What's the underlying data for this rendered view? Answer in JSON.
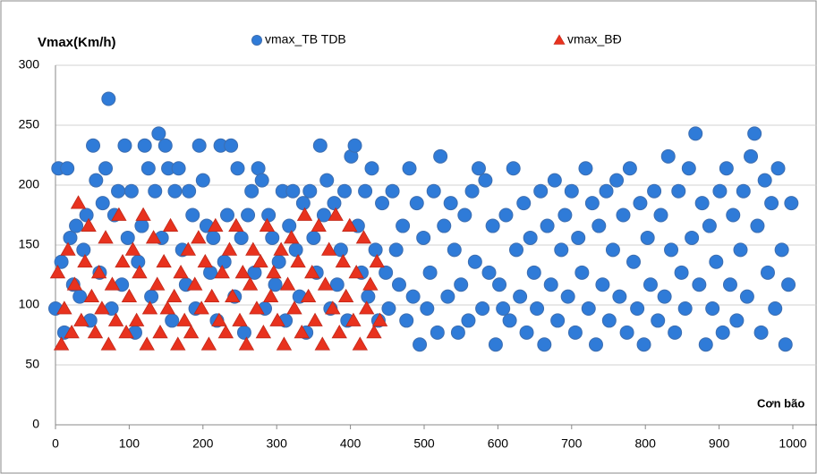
{
  "chart_data": {
    "type": "scatter",
    "y_label": "Vmax(Km/h)",
    "x_label": "Cơn bão",
    "xlim": [
      0,
      1000
    ],
    "xticks": [
      0,
      100,
      200,
      300,
      400,
      500,
      600,
      700,
      800,
      900,
      1000
    ],
    "ylim": [
      0,
      300
    ],
    "yticks": [
      0,
      50,
      100,
      150,
      200,
      250,
      300
    ],
    "grid": true,
    "series": [
      {
        "name": "vmax_TB TDB",
        "color": "#2f7bd8",
        "marker": "circle",
        "x": [
          0,
          4,
          8,
          12,
          16,
          20,
          24,
          28,
          33,
          38,
          42,
          47,
          51,
          55,
          60,
          64,
          68,
          72,
          76,
          80,
          85,
          90,
          94,
          98,
          103,
          108,
          112,
          117,
          121,
          126,
          130,
          135,
          140,
          144,
          149,
          153,
          158,
          162,
          167,
          172,
          177,
          181,
          186,
          190,
          195,
          200,
          205,
          210,
          214,
          219,
          224,
          229,
          233,
          238,
          243,
          247,
          252,
          256,
          261,
          266,
          270,
          275,
          280,
          284,
          289,
          294,
          298,
          303,
          308,
          312,
          317,
          322,
          326,
          331,
          336,
          340,
          345,
          350,
          354,
          359,
          364,
          368,
          373,
          378,
          382,
          387,
          392,
          396,
          401,
          406,
          410,
          415,
          420,
          424,
          429,
          434,
          438,
          443,
          448,
          452,
          457,
          462,
          466,
          471,
          476,
          480,
          485,
          490,
          494,
          499,
          504,
          508,
          513,
          518,
          522,
          527,
          532,
          536,
          541,
          546,
          550,
          555,
          560,
          565,
          569,
          574,
          579,
          583,
          588,
          593,
          597,
          602,
          607,
          611,
          616,
          621,
          625,
          630,
          635,
          639,
          644,
          649,
          653,
          658,
          663,
          667,
          672,
          677,
          681,
          686,
          691,
          695,
          700,
          705,
          709,
          714,
          719,
          723,
          728,
          733,
          737,
          742,
          747,
          751,
          756,
          761,
          765,
          770,
          775,
          779,
          784,
          789,
          793,
          798,
          803,
          807,
          812,
          817,
          821,
          826,
          831,
          835,
          840,
          845,
          849,
          854,
          859,
          863,
          868,
          873,
          877,
          882,
          887,
          891,
          896,
          901,
          905,
          910,
          915,
          919,
          924,
          929,
          933,
          938,
          943,
          948,
          952,
          957,
          962,
          966,
          971,
          976,
          980,
          985,
          990,
          994,
          998
        ],
        "values": [
          97,
          214,
          136,
          77,
          214,
          156,
          117,
          166,
          107,
          146,
          175,
          87,
          233,
          204,
          127,
          185,
          214,
          272,
          97,
          175,
          195,
          117,
          233,
          156,
          195,
          77,
          136,
          166,
          233,
          214,
          107,
          195,
          243,
          156,
          233,
          214,
          87,
          195,
          214,
          146,
          117,
          195,
          175,
          97,
          233,
          204,
          166,
          127,
          156,
          87,
          233,
          136,
          175,
          233,
          107,
          214,
          156,
          77,
          175,
          195,
          127,
          214,
          204,
          97,
          175,
          156,
          117,
          136,
          195,
          87,
          166,
          195,
          146,
          107,
          185,
          77,
          195,
          156,
          127,
          233,
          175,
          204,
          97,
          185,
          117,
          146,
          195,
          87,
          224,
          233,
          166,
          127,
          195,
          107,
          214,
          146,
          87,
          185,
          127,
          97,
          195,
          146,
          117,
          166,
          87,
          214,
          107,
          185,
          67,
          156,
          97,
          127,
          195,
          77,
          224,
          166,
          107,
          185,
          146,
          77,
          117,
          175,
          87,
          195,
          136,
          214,
          97,
          204,
          127,
          166,
          67,
          117,
          97,
          175,
          87,
          214,
          146,
          107,
          185,
          77,
          156,
          127,
          97,
          195,
          67,
          166,
          117,
          204,
          87,
          146,
          175,
          107,
          195,
          77,
          156,
          127,
          214,
          97,
          185,
          67,
          166,
          117,
          195,
          87,
          146,
          204,
          107,
          175,
          77,
          214,
          136,
          97,
          185,
          67,
          156,
          117,
          195,
          87,
          175,
          107,
          224,
          146,
          77,
          195,
          127,
          97,
          214,
          156,
          243,
          117,
          185,
          67,
          166,
          97,
          136,
          195,
          77,
          214,
          117,
          175,
          87,
          146,
          195,
          107,
          224,
          243,
          166,
          77,
          204,
          127,
          185,
          97,
          214,
          146,
          67,
          117,
          185
        ]
      },
      {
        "name": "vmax_BĐ",
        "color": "#e8321e",
        "marker": "triangle",
        "x": [
          3,
          8,
          12,
          17,
          22,
          26,
          31,
          35,
          40,
          45,
          49,
          54,
          59,
          63,
          68,
          72,
          77,
          82,
          86,
          91,
          96,
          100,
          105,
          110,
          114,
          119,
          124,
          128,
          133,
          138,
          142,
          147,
          152,
          156,
          161,
          166,
          170,
          175,
          180,
          184,
          189,
          194,
          198,
          203,
          208,
          212,
          217,
          222,
          226,
          231,
          236,
          240,
          245,
          250,
          254,
          259,
          264,
          268,
          273,
          278,
          282,
          287,
          292,
          296,
          301,
          306,
          310,
          315,
          320,
          324,
          329,
          334,
          338,
          343,
          348,
          352,
          357,
          362,
          366,
          371,
          376,
          380,
          385,
          390,
          394,
          399,
          404,
          408,
          413,
          418,
          422,
          427,
          432,
          436,
          440
        ],
        "values": [
          127,
          67,
          97,
          146,
          77,
          117,
          185,
          87,
          136,
          166,
          107,
          77,
          127,
          97,
          156,
          67,
          117,
          87,
          175,
          136,
          77,
          107,
          146,
          87,
          127,
          175,
          67,
          97,
          156,
          117,
          77,
          136,
          97,
          166,
          107,
          67,
          127,
          87,
          146,
          77,
          117,
          156,
          97,
          136,
          67,
          107,
          166,
          87,
          127,
          77,
          146,
          107,
          166,
          87,
          127,
          67,
          117,
          146,
          97,
          136,
          77,
          166,
          107,
          127,
          87,
          146,
          67,
          117,
          156,
          97,
          136,
          77,
          175,
          107,
          127,
          87,
          166,
          67,
          117,
          146,
          97,
          175,
          77,
          136,
          107,
          166,
          87,
          127,
          67,
          156,
          97,
          117,
          77,
          136,
          87
        ]
      }
    ]
  }
}
